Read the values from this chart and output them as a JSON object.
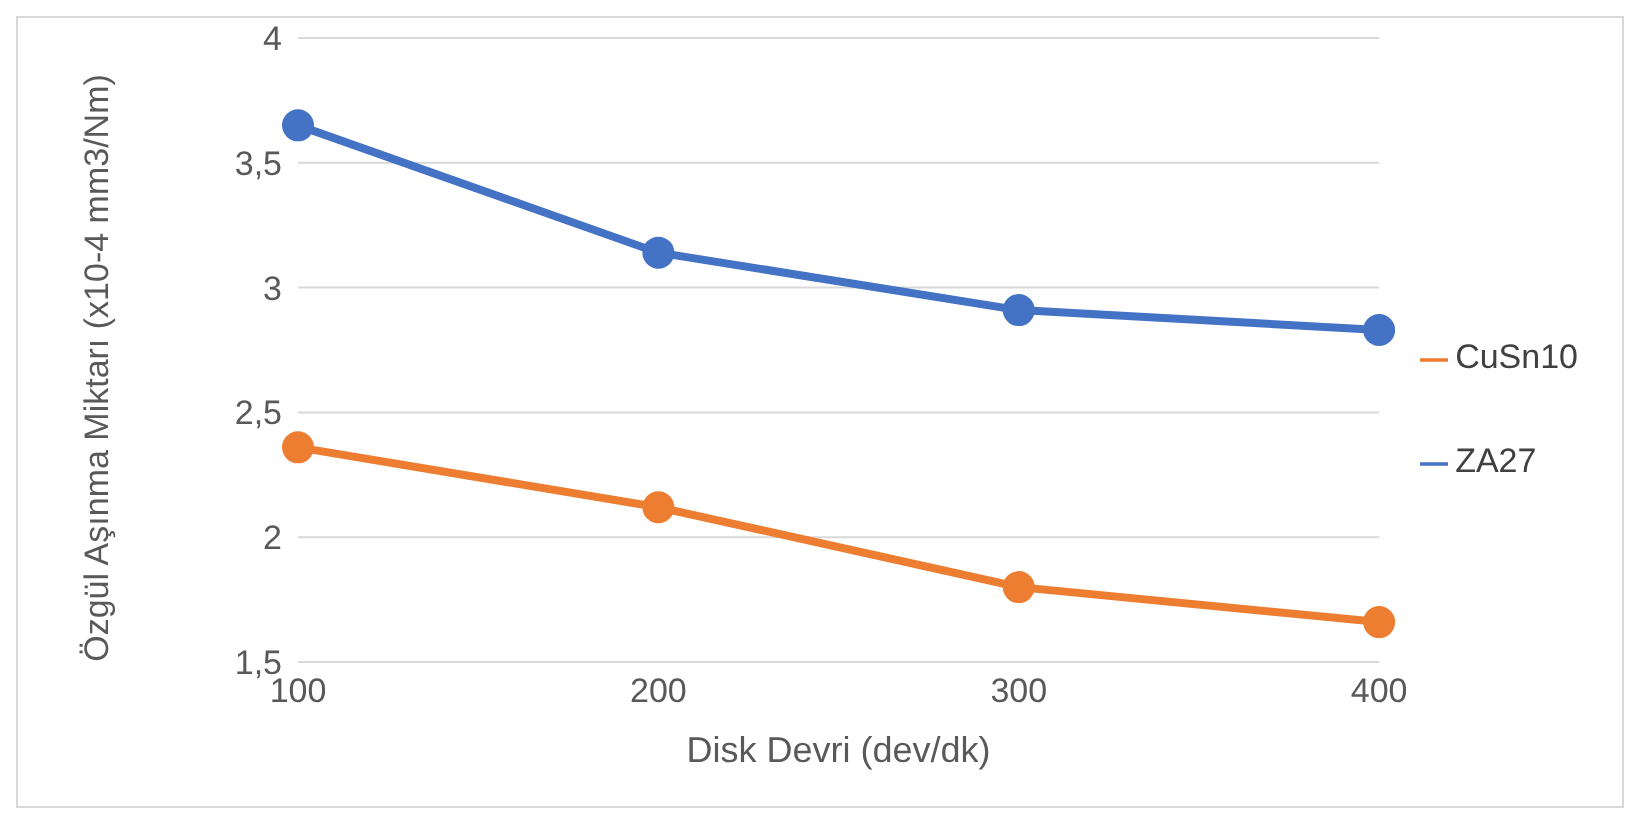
{
  "chart_data": {
    "type": "line",
    "xlabel": "Disk Devri (dev/dk)",
    "ylabel": "Özgül Aşınma Miktarı  (x10-4 mm3/Nm)",
    "categories": [
      "100",
      "200",
      "300",
      "400"
    ],
    "series": [
      {
        "name": "ZA27",
        "color": "#4472c4",
        "values": [
          3.65,
          3.14,
          2.91,
          2.83
        ]
      },
      {
        "name": "CuSn10",
        "color": "#ed7d31",
        "values": [
          2.36,
          2.12,
          1.8,
          1.66
        ]
      }
    ],
    "ylim": [
      1.5,
      4
    ],
    "yticks": [
      {
        "value": 1.5,
        "label": "1,5"
      },
      2,
      {
        "value": 2.5,
        "label": "2,5"
      },
      3,
      {
        "value": 3.5,
        "label": "3,5"
      },
      4
    ],
    "grid": "y",
    "legend": "right",
    "marker": "circle",
    "line_style": "solid"
  }
}
